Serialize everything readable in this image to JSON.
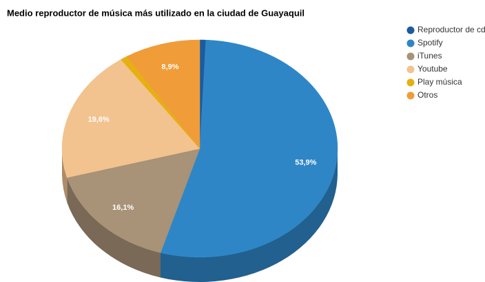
{
  "chart_data": {
    "type": "pie",
    "title": "Medio reproductor de música más utilizado en la ciudad de Guayaquil",
    "categories": [
      "Reproductor de cd",
      "Spotify",
      "iTunes",
      "Youtube",
      "Play música",
      "Otros"
    ],
    "values": [
      0.7,
      53.9,
      16.1,
      19.6,
      0.8,
      8.9
    ],
    "value_labels": [
      null,
      "53,9%",
      "16,1%",
      "19,6%",
      null,
      "8,9%"
    ],
    "colors": [
      "#1b5c9e",
      "#2e86c6",
      "#a89278",
      "#f2c38f",
      "#e6b012",
      "#f09c38"
    ],
    "legend": "top-right"
  }
}
